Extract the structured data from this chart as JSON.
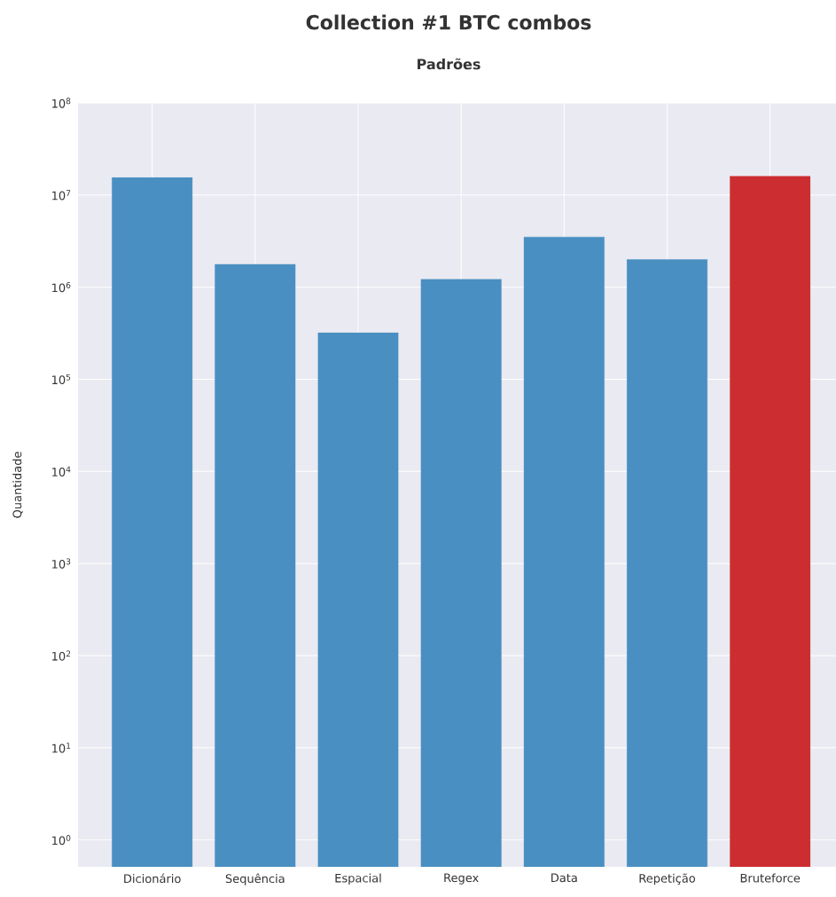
{
  "chart_data": {
    "type": "bar",
    "title": "Collection #1 BTC combos",
    "subtitle": "Padrões",
    "ylabel": "Quantidade",
    "categories": [
      "Dicionário",
      "Sequência",
      "Espacial",
      "Regex",
      "Data",
      "Repetição",
      "Bruteforce"
    ],
    "values": [
      15500000,
      1770000,
      320000,
      1220000,
      3500000,
      2000000,
      16000000
    ],
    "colors": [
      "#4a8fc2",
      "#4a8fc2",
      "#4a8fc2",
      "#4a8fc2",
      "#4a8fc2",
      "#4a8fc2",
      "#cc2d30"
    ],
    "log": true,
    "ylim": [
      0.51,
      100000000
    ],
    "yticks": [
      {
        "value": 1,
        "label": "10$^{0}$"
      },
      {
        "value": 10,
        "label": "10$^{1}$"
      },
      {
        "value": 100,
        "label": "10$^{2}$"
      },
      {
        "value": 1000,
        "label": "10$^{3}$"
      },
      {
        "value": 10000,
        "label": "10$^{4}$"
      },
      {
        "value": 100000,
        "label": "10$^{5}$"
      },
      {
        "value": 1000000,
        "label": "10$^{6}$"
      },
      {
        "value": 10000000,
        "label": "10$^{7}$"
      },
      {
        "value": 100000000,
        "label": "10$^{8}$"
      }
    ],
    "grid": true
  }
}
